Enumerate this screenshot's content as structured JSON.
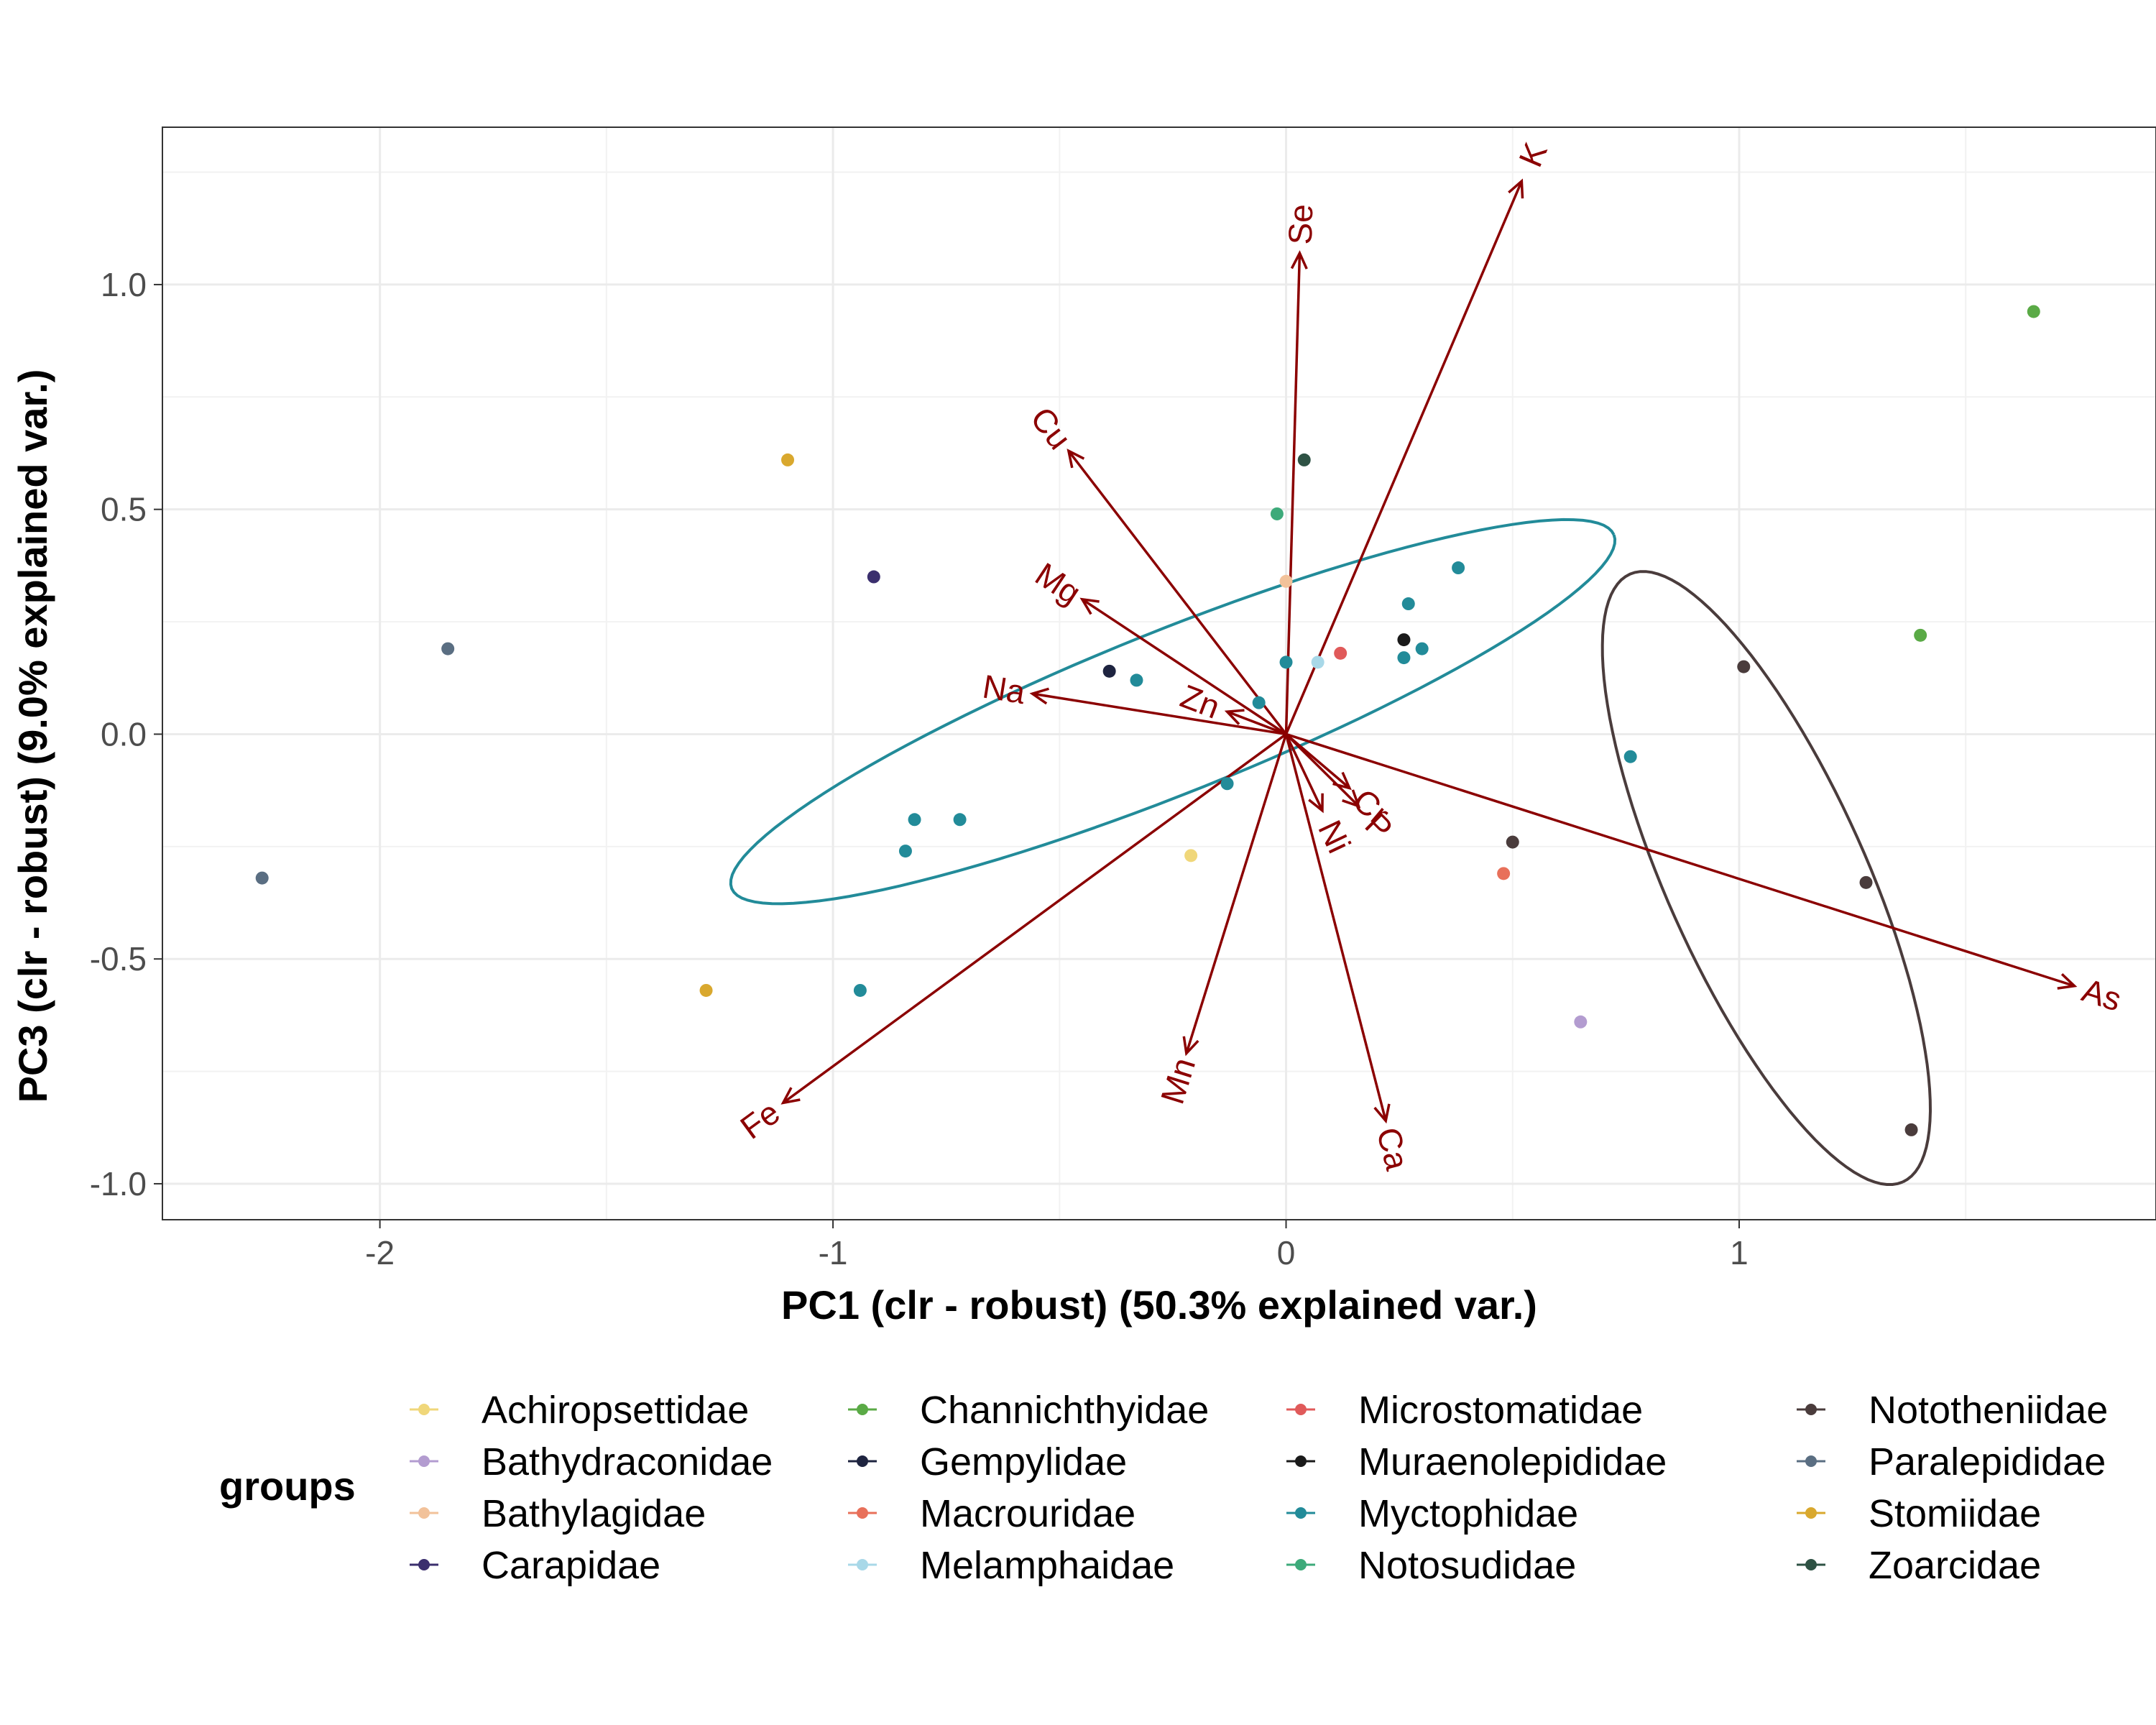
{
  "chart_data": {
    "type": "scatter",
    "xlabel": "PC1 (clr - robust) (50.3% explained var.)",
    "ylabel": "PC3 (clr - robust) (9.0% explained var.)",
    "xlim": [
      -2.48,
      1.92
    ],
    "ylim": [
      -1.08,
      1.35
    ],
    "x_ticks": [
      -2,
      -1,
      0,
      1
    ],
    "x_tick_labels": [
      "-2",
      "-1",
      "0",
      "1"
    ],
    "y_ticks": [
      -1.0,
      -0.5,
      0.0,
      0.5,
      1.0
    ],
    "y_tick_labels": [
      "-1.0",
      "-0.5",
      "0.0",
      "0.5",
      "1.0"
    ],
    "grid": true,
    "legend_title": "groups",
    "legend_position": "bottom",
    "arrow_color": "#8b0000",
    "groups": [
      {
        "name": "Achiropsettidae",
        "color": "#f0d77a"
      },
      {
        "name": "Bathydraconidae",
        "color": "#b39cd0"
      },
      {
        "name": "Bathylagidae",
        "color": "#f2c29a"
      },
      {
        "name": "Carapidae",
        "color": "#3b2f6e"
      },
      {
        "name": "Channichthyidae",
        "color": "#5aaa46"
      },
      {
        "name": "Gempylidae",
        "color": "#1e2440"
      },
      {
        "name": "Macrouridae",
        "color": "#e8705a"
      },
      {
        "name": "Melamphaidae",
        "color": "#a8d8e8"
      },
      {
        "name": "Microstomatidae",
        "color": "#e05a5a"
      },
      {
        "name": "Muraenolepididae",
        "color": "#1a1a1a"
      },
      {
        "name": "Myctophidae",
        "color": "#228b99"
      },
      {
        "name": "Notosudidae",
        "color": "#3daa7a"
      },
      {
        "name": "Nototheniidae",
        "color": "#4a3c3c"
      },
      {
        "name": "Paralepididae",
        "color": "#5a6e82"
      },
      {
        "name": "Stomiidae",
        "color": "#d9a82e"
      },
      {
        "name": "Zoarcidae",
        "color": "#2e5244"
      }
    ],
    "points": [
      {
        "group": "Channichthyidae",
        "x": 1.65,
        "y": 0.94
      },
      {
        "group": "Channichthyidae",
        "x": 1.4,
        "y": 0.22
      },
      {
        "group": "Zoarcidae",
        "x": 0.04,
        "y": 0.61
      },
      {
        "group": "Notosudidae",
        "x": -0.02,
        "y": 0.49
      },
      {
        "group": "Bathylagidae",
        "x": 0.0,
        "y": 0.34
      },
      {
        "group": "Stomiidae",
        "x": -1.1,
        "y": 0.61
      },
      {
        "group": "Stomiidae",
        "x": -1.28,
        "y": -0.57
      },
      {
        "group": "Carapidae",
        "x": -0.91,
        "y": 0.35
      },
      {
        "group": "Paralepididae",
        "x": -1.85,
        "y": 0.19
      },
      {
        "group": "Paralepididae",
        "x": -2.26,
        "y": -0.32
      },
      {
        "group": "Myctophidae",
        "x": 0.38,
        "y": 0.37
      },
      {
        "group": "Myctophidae",
        "x": 0.27,
        "y": 0.29
      },
      {
        "group": "Myctophidae",
        "x": 0.3,
        "y": 0.19
      },
      {
        "group": "Myctophidae",
        "x": 0.26,
        "y": 0.17
      },
      {
        "group": "Myctophidae",
        "x": 0.0,
        "y": 0.16
      },
      {
        "group": "Myctophidae",
        "x": -0.33,
        "y": 0.12
      },
      {
        "group": "Myctophidae",
        "x": -0.06,
        "y": 0.07
      },
      {
        "group": "Myctophidae",
        "x": -0.13,
        "y": -0.11
      },
      {
        "group": "Myctophidae",
        "x": -0.82,
        "y": -0.19
      },
      {
        "group": "Myctophidae",
        "x": -0.72,
        "y": -0.19
      },
      {
        "group": "Myctophidae",
        "x": -0.84,
        "y": -0.26
      },
      {
        "group": "Myctophidae",
        "x": -0.94,
        "y": -0.57
      },
      {
        "group": "Myctophidae",
        "x": 0.76,
        "y": -0.05
      },
      {
        "group": "Muraenolepididae",
        "x": 0.26,
        "y": 0.21
      },
      {
        "group": "Microstomatidae",
        "x": 0.12,
        "y": 0.18
      },
      {
        "group": "Melamphaidae",
        "x": 0.07,
        "y": 0.16
      },
      {
        "group": "Gempylidae",
        "x": -0.39,
        "y": 0.14
      },
      {
        "group": "Achiropsettidae",
        "x": -0.21,
        "y": -0.27
      },
      {
        "group": "Macrouridae",
        "x": 0.48,
        "y": -0.31
      },
      {
        "group": "Bathydraconidae",
        "x": 0.65,
        "y": -0.64
      },
      {
        "group": "Nototheniidae",
        "x": 1.01,
        "y": 0.15
      },
      {
        "group": "Nototheniidae",
        "x": 0.5,
        "y": -0.24
      },
      {
        "group": "Nototheniidae",
        "x": 1.28,
        "y": -0.33
      },
      {
        "group": "Nototheniidae",
        "x": 1.38,
        "y": -0.88
      }
    ],
    "loadings": [
      {
        "name": "K",
        "x": 0.52,
        "y": 1.23
      },
      {
        "name": "Se",
        "x": 0.03,
        "y": 1.07
      },
      {
        "name": "Cu",
        "x": -0.48,
        "y": 0.63
      },
      {
        "name": "Mg",
        "x": -0.45,
        "y": 0.3
      },
      {
        "name": "Na",
        "x": -0.56,
        "y": 0.09
      },
      {
        "name": "Zn",
        "x": -0.13,
        "y": 0.05
      },
      {
        "name": "Cr",
        "x": 0.14,
        "y": -0.12
      },
      {
        "name": "P",
        "x": 0.16,
        "y": -0.16
      },
      {
        "name": "Ni",
        "x": 0.08,
        "y": -0.17
      },
      {
        "name": "As",
        "x": 1.74,
        "y": -0.56
      },
      {
        "name": "Ca",
        "x": 0.22,
        "y": -0.86
      },
      {
        "name": "Mn",
        "x": -0.22,
        "y": -0.71
      },
      {
        "name": "Fe",
        "x": -1.11,
        "y": -0.82
      }
    ],
    "ellipses": [
      {
        "group": "Myctophidae",
        "cx": -0.25,
        "cy": 0.05,
        "a": 1.05,
        "b": 0.18,
        "angle_deg": 22
      },
      {
        "group": "Nototheniidae",
        "cx": 1.06,
        "cy": -0.32,
        "a": 0.74,
        "b": 0.22,
        "angle_deg": -66
      }
    ]
  }
}
